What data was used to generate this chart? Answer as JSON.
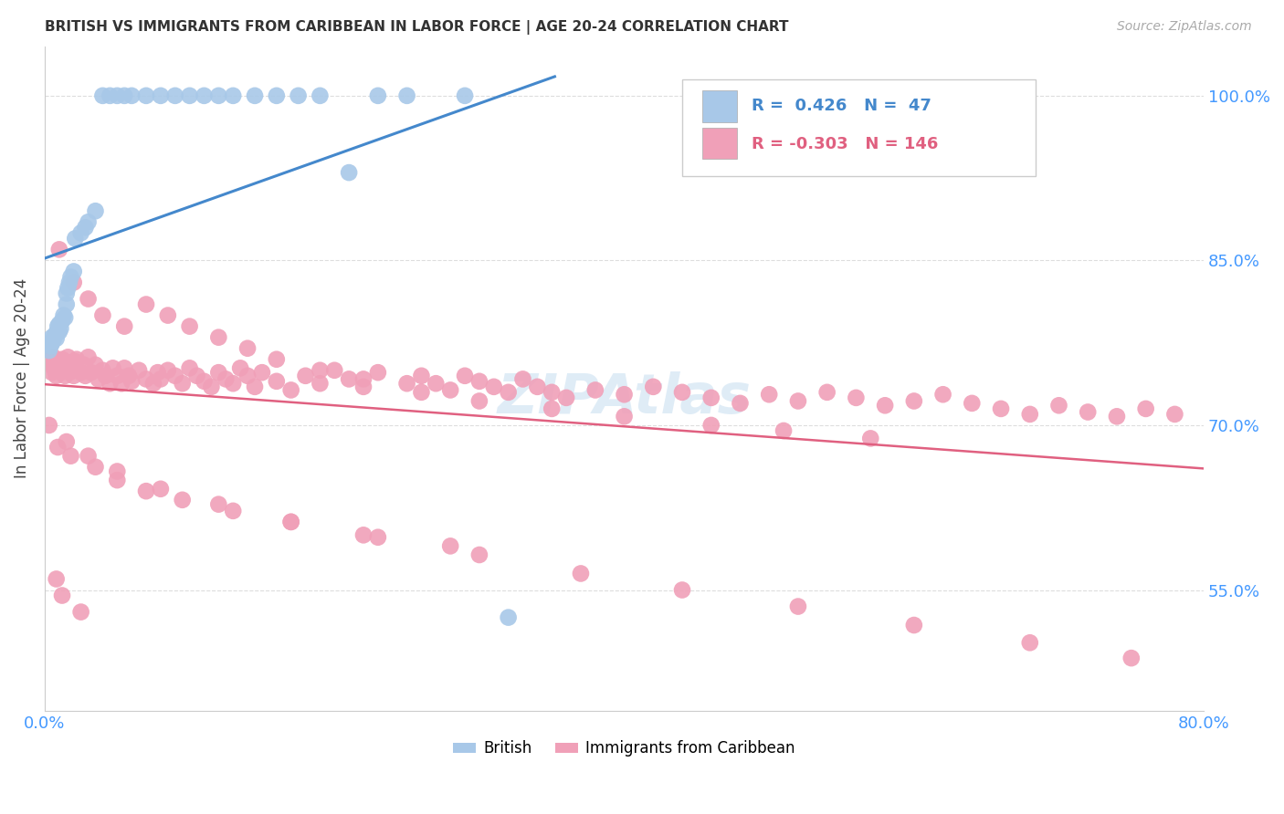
{
  "title": "BRITISH VS IMMIGRANTS FROM CARIBBEAN IN LABOR FORCE | AGE 20-24 CORRELATION CHART",
  "source": "Source: ZipAtlas.com",
  "ylabel": "In Labor Force | Age 20-24",
  "blue_R": 0.426,
  "blue_N": 47,
  "pink_R": -0.303,
  "pink_N": 146,
  "blue_label": "British",
  "pink_label": "Immigrants from Caribbean",
  "blue_color": "#a8c8e8",
  "pink_color": "#f0a0b8",
  "blue_line_color": "#4488cc",
  "pink_line_color": "#e06080",
  "tick_color": "#4499ff",
  "watermark": "ZIPAtlas",
  "xmin": 0.0,
  "xmax": 0.8,
  "ymin": 0.44,
  "ymax": 1.045,
  "yticks": [
    0.55,
    0.7,
    0.85,
    1.0
  ],
  "ytick_labels": [
    "55.0%",
    "70.0%",
    "85.0%",
    "100.0%"
  ],
  "blue_x": [
    0.003,
    0.004,
    0.005,
    0.005,
    0.006,
    0.007,
    0.008,
    0.008,
    0.009,
    0.01,
    0.01,
    0.011,
    0.012,
    0.013,
    0.014,
    0.015,
    0.015,
    0.016,
    0.017,
    0.018,
    0.02,
    0.021,
    0.025,
    0.028,
    0.03,
    0.035,
    0.04,
    0.045,
    0.05,
    0.055,
    0.06,
    0.07,
    0.08,
    0.09,
    0.1,
    0.11,
    0.12,
    0.13,
    0.145,
    0.16,
    0.175,
    0.19,
    0.21,
    0.23,
    0.25,
    0.29,
    0.32
  ],
  "blue_y": [
    0.768,
    0.772,
    0.775,
    0.78,
    0.778,
    0.782,
    0.779,
    0.784,
    0.79,
    0.785,
    0.792,
    0.788,
    0.795,
    0.8,
    0.798,
    0.81,
    0.82,
    0.825,
    0.83,
    0.835,
    0.84,
    0.87,
    0.875,
    0.88,
    0.885,
    0.895,
    1.0,
    1.0,
    1.0,
    1.0,
    1.0,
    1.0,
    1.0,
    1.0,
    1.0,
    1.0,
    1.0,
    1.0,
    1.0,
    1.0,
    1.0,
    1.0,
    0.93,
    1.0,
    1.0,
    1.0,
    0.525
  ],
  "pink_x": [
    0.003,
    0.005,
    0.005,
    0.006,
    0.007,
    0.008,
    0.009,
    0.01,
    0.011,
    0.012,
    0.013,
    0.014,
    0.014,
    0.015,
    0.016,
    0.017,
    0.018,
    0.019,
    0.02,
    0.021,
    0.022,
    0.023,
    0.025,
    0.027,
    0.028,
    0.03,
    0.032,
    0.035,
    0.037,
    0.04,
    0.042,
    0.045,
    0.047,
    0.05,
    0.053,
    0.055,
    0.058,
    0.06,
    0.065,
    0.07,
    0.075,
    0.078,
    0.08,
    0.085,
    0.09,
    0.095,
    0.1,
    0.105,
    0.11,
    0.115,
    0.12,
    0.125,
    0.13,
    0.135,
    0.14,
    0.145,
    0.15,
    0.16,
    0.17,
    0.18,
    0.19,
    0.2,
    0.21,
    0.22,
    0.23,
    0.25,
    0.26,
    0.27,
    0.28,
    0.29,
    0.3,
    0.31,
    0.32,
    0.33,
    0.34,
    0.35,
    0.36,
    0.38,
    0.4,
    0.42,
    0.44,
    0.46,
    0.48,
    0.5,
    0.52,
    0.54,
    0.56,
    0.58,
    0.6,
    0.62,
    0.64,
    0.66,
    0.68,
    0.7,
    0.72,
    0.74,
    0.76,
    0.78,
    0.01,
    0.02,
    0.03,
    0.04,
    0.055,
    0.07,
    0.085,
    0.1,
    0.12,
    0.14,
    0.16,
    0.19,
    0.22,
    0.26,
    0.3,
    0.35,
    0.4,
    0.46,
    0.51,
    0.57,
    0.009,
    0.018,
    0.035,
    0.05,
    0.07,
    0.095,
    0.13,
    0.17,
    0.22,
    0.28,
    0.003,
    0.015,
    0.03,
    0.05,
    0.08,
    0.12,
    0.17,
    0.23,
    0.3,
    0.37,
    0.44,
    0.52,
    0.6,
    0.68,
    0.75,
    0.008,
    0.012,
    0.025
  ],
  "pink_y": [
    0.76,
    0.755,
    0.748,
    0.762,
    0.75,
    0.745,
    0.758,
    0.752,
    0.748,
    0.76,
    0.755,
    0.745,
    0.758,
    0.75,
    0.762,
    0.748,
    0.755,
    0.75,
    0.745,
    0.758,
    0.76,
    0.75,
    0.748,
    0.755,
    0.745,
    0.762,
    0.748,
    0.755,
    0.742,
    0.75,
    0.745,
    0.738,
    0.752,
    0.745,
    0.738,
    0.752,
    0.745,
    0.74,
    0.75,
    0.742,
    0.738,
    0.748,
    0.742,
    0.75,
    0.745,
    0.738,
    0.752,
    0.745,
    0.74,
    0.735,
    0.748,
    0.742,
    0.738,
    0.752,
    0.745,
    0.735,
    0.748,
    0.74,
    0.732,
    0.745,
    0.738,
    0.75,
    0.742,
    0.735,
    0.748,
    0.738,
    0.745,
    0.738,
    0.732,
    0.745,
    0.74,
    0.735,
    0.73,
    0.742,
    0.735,
    0.73,
    0.725,
    0.732,
    0.728,
    0.735,
    0.73,
    0.725,
    0.72,
    0.728,
    0.722,
    0.73,
    0.725,
    0.718,
    0.722,
    0.728,
    0.72,
    0.715,
    0.71,
    0.718,
    0.712,
    0.708,
    0.715,
    0.71,
    0.86,
    0.83,
    0.815,
    0.8,
    0.79,
    0.81,
    0.8,
    0.79,
    0.78,
    0.77,
    0.76,
    0.75,
    0.742,
    0.73,
    0.722,
    0.715,
    0.708,
    0.7,
    0.695,
    0.688,
    0.68,
    0.672,
    0.662,
    0.65,
    0.64,
    0.632,
    0.622,
    0.612,
    0.6,
    0.59,
    0.7,
    0.685,
    0.672,
    0.658,
    0.642,
    0.628,
    0.612,
    0.598,
    0.582,
    0.565,
    0.55,
    0.535,
    0.518,
    0.502,
    0.488,
    0.56,
    0.545,
    0.53
  ]
}
